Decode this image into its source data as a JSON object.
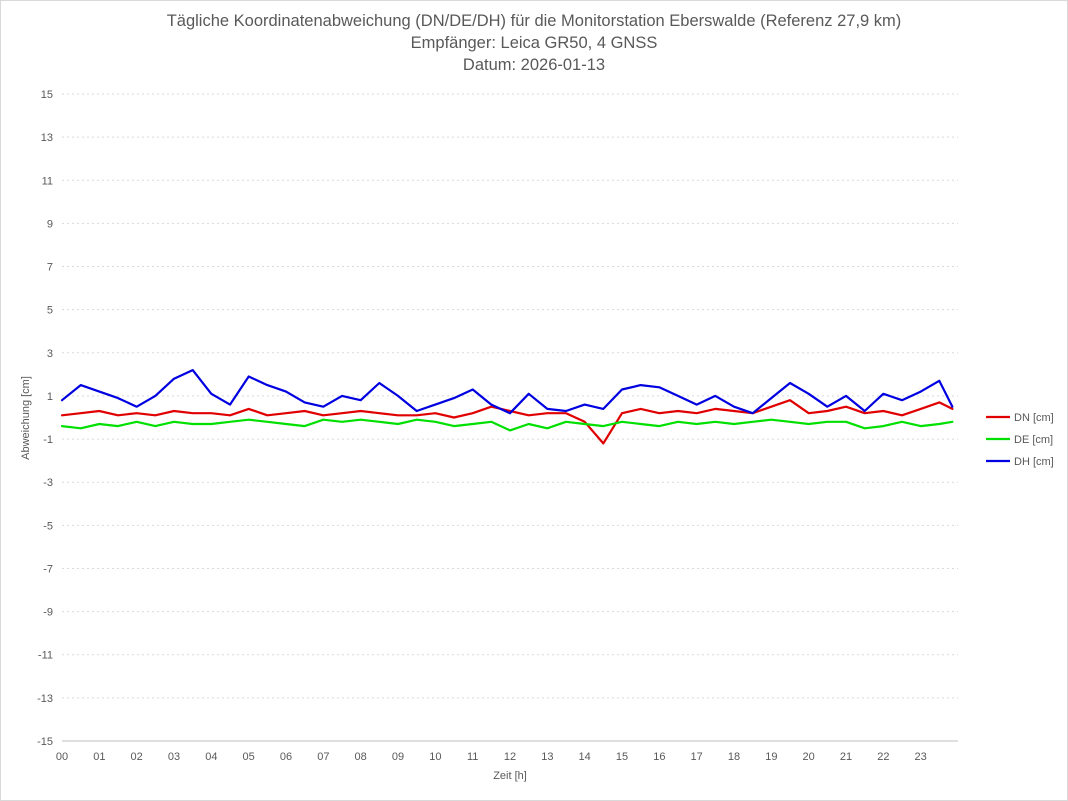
{
  "chart_data": {
    "type": "line",
    "title": "Tägliche Koordinatenabweichung (DN/DE/DH) für die Monitorstation Eberswalde (Referenz 27,9 km)",
    "subtitle_1": "Empfänger: Leica GR50, 4 GNSS",
    "subtitle_2": "Datum: 2026-01-13",
    "xlabel": "Zeit [h]",
    "ylabel": "Abweichung [cm]",
    "xlim": [
      0,
      24
    ],
    "ylim": [
      -15,
      15
    ],
    "x_ticks": [
      "00",
      "01",
      "02",
      "03",
      "04",
      "05",
      "06",
      "07",
      "08",
      "09",
      "10",
      "11",
      "12",
      "13",
      "14",
      "15",
      "16",
      "17",
      "18",
      "19",
      "20",
      "21",
      "22",
      "23"
    ],
    "y_ticks": [
      15,
      13,
      11,
      9,
      7,
      5,
      3,
      1,
      -1,
      -3,
      -5,
      -7,
      -9,
      -11,
      -13,
      -15
    ],
    "grid": "horizontal-dotted",
    "legend_position": "right",
    "x": [
      0,
      0.5,
      1,
      1.5,
      2,
      2.5,
      3,
      3.5,
      4,
      4.5,
      5,
      5.5,
      6,
      6.5,
      7,
      7.5,
      8,
      8.5,
      9,
      9.5,
      10,
      10.5,
      11,
      11.5,
      12,
      12.5,
      13,
      13.5,
      14,
      14.5,
      15,
      15.5,
      16,
      16.5,
      17,
      17.5,
      18,
      18.5,
      19,
      19.5,
      20,
      20.5,
      21,
      21.5,
      22,
      22.5,
      23,
      23.5,
      23.85
    ],
    "series": [
      {
        "name": "DN [cm]",
        "color": "#e00000",
        "values": [
          0.1,
          0.2,
          0.3,
          0.1,
          0.2,
          0.1,
          0.3,
          0.2,
          0.2,
          0.1,
          0.4,
          0.1,
          0.2,
          0.3,
          0.1,
          0.2,
          0.3,
          0.2,
          0.1,
          0.1,
          0.2,
          0.0,
          0.2,
          0.5,
          0.3,
          0.1,
          0.2,
          0.2,
          -0.2,
          -1.2,
          0.2,
          0.4,
          0.2,
          0.3,
          0.2,
          0.4,
          0.3,
          0.2,
          0.5,
          0.8,
          0.2,
          0.3,
          0.5,
          0.2,
          0.3,
          0.1,
          0.4,
          0.7,
          0.4
        ]
      },
      {
        "name": "DE [cm]",
        "color": "#00e000",
        "values": [
          -0.4,
          -0.5,
          -0.3,
          -0.4,
          -0.2,
          -0.4,
          -0.2,
          -0.3,
          -0.3,
          -0.2,
          -0.1,
          -0.2,
          -0.3,
          -0.4,
          -0.1,
          -0.2,
          -0.1,
          -0.2,
          -0.3,
          -0.1,
          -0.2,
          -0.4,
          -0.3,
          -0.2,
          -0.6,
          -0.3,
          -0.5,
          -0.2,
          -0.3,
          -0.4,
          -0.2,
          -0.3,
          -0.4,
          -0.2,
          -0.3,
          -0.2,
          -0.3,
          -0.2,
          -0.1,
          -0.2,
          -0.3,
          -0.2,
          -0.2,
          -0.5,
          -0.4,
          -0.2,
          -0.4,
          -0.3,
          -0.2
        ]
      },
      {
        "name": "DH [cm]",
        "color": "#0000e0",
        "values": [
          0.8,
          1.5,
          1.2,
          0.9,
          0.5,
          1.0,
          1.8,
          2.2,
          1.1,
          0.6,
          1.9,
          1.5,
          1.2,
          0.7,
          0.5,
          1.0,
          0.8,
          1.6,
          1.0,
          0.3,
          0.6,
          0.9,
          1.3,
          0.6,
          0.2,
          1.1,
          0.4,
          0.3,
          0.6,
          0.4,
          1.3,
          1.5,
          1.4,
          1.0,
          0.6,
          1.0,
          0.5,
          0.2,
          0.9,
          1.6,
          1.1,
          0.5,
          1.0,
          0.3,
          1.1,
          0.8,
          1.2,
          1.7,
          0.5
        ]
      }
    ]
  }
}
